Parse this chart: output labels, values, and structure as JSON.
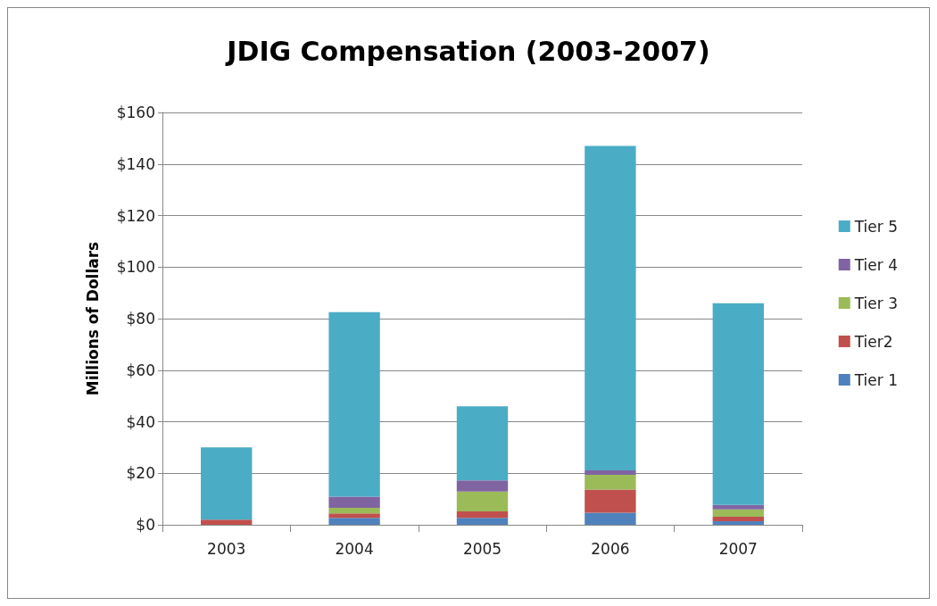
{
  "chart_data": {
    "type": "bar",
    "title": "JDIG Compensation (2003-2007)",
    "ylabel": "Millions of Dollars",
    "categories": [
      "2003",
      "2004",
      "2005",
      "2006",
      "2007"
    ],
    "stacked": true,
    "series": [
      {
        "name": "Tier 1",
        "color": "#4f81bd",
        "values": [
          0,
          2.7,
          2.7,
          4.7,
          1.4
        ]
      },
      {
        "name": "Tier2",
        "color": "#c0504d",
        "values": [
          2,
          1.7,
          2.5,
          9,
          1.7
        ]
      },
      {
        "name": "Tier 3",
        "color": "#9bbb59",
        "values": [
          0,
          2.2,
          7.7,
          5.7,
          2.9
        ]
      },
      {
        "name": "Tier 4",
        "color": "#8064a2",
        "values": [
          0,
          4.3,
          4.3,
          1.7,
          1.7
        ]
      },
      {
        "name": "Tier 5",
        "color": "#4bacc6",
        "values": [
          28,
          71.6,
          28.8,
          125.9,
          78.3
        ]
      }
    ],
    "ylim": [
      0,
      160
    ],
    "yticks": [
      {
        "value": 0,
        "label": "$0"
      },
      {
        "value": 20,
        "label": "$20"
      },
      {
        "value": 40,
        "label": "$40"
      },
      {
        "value": 60,
        "label": "$60"
      },
      {
        "value": 80,
        "label": "$80"
      },
      {
        "value": 100,
        "label": "$100"
      },
      {
        "value": 120,
        "label": "$120"
      },
      {
        "value": 140,
        "label": "$140"
      },
      {
        "value": 160,
        "label": "$160"
      }
    ],
    "grid": "y",
    "legend": "right"
  }
}
